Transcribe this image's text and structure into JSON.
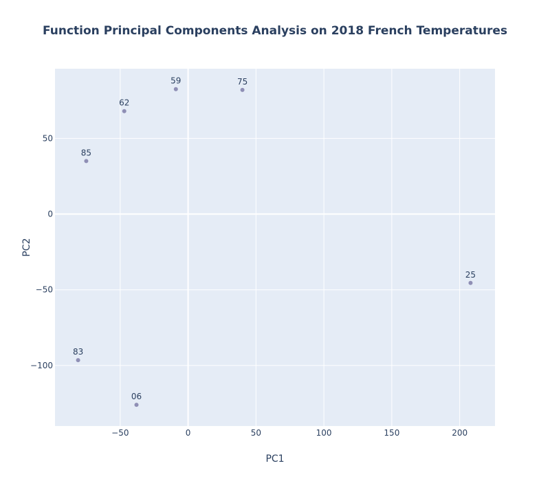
{
  "chart_data": {
    "type": "scatter",
    "title": "Function Principal Components Analysis on 2018 French Temperatures",
    "xlabel": "PC1",
    "ylabel": "PC2",
    "xlim": [
      -98,
      226
    ],
    "ylim": [
      -140,
      96
    ],
    "xticks": [
      -50,
      0,
      50,
      100,
      150,
      200
    ],
    "xtick_labels": [
      "−50",
      "0",
      "50",
      "100",
      "150",
      "200"
    ],
    "yticks": [
      -100,
      -50,
      0,
      50
    ],
    "ytick_labels": [
      "−100",
      "−50",
      "0",
      "50"
    ],
    "grid": true,
    "legend": "none",
    "colors": {
      "plot_background": "#e5ecf6",
      "grid": "#ffffff",
      "marker": "#8f8fb5",
      "text": "#2a3f5f"
    },
    "points": [
      {
        "label": "59",
        "x": -9,
        "y": 82.5
      },
      {
        "label": "75",
        "x": 40,
        "y": 82
      },
      {
        "label": "62",
        "x": -47,
        "y": 68
      },
      {
        "label": "85",
        "x": -75,
        "y": 35
      },
      {
        "label": "25",
        "x": 208,
        "y": -45.5
      },
      {
        "label": "83",
        "x": -81,
        "y": -96.5
      },
      {
        "label": "06",
        "x": -38,
        "y": -126
      }
    ]
  }
}
